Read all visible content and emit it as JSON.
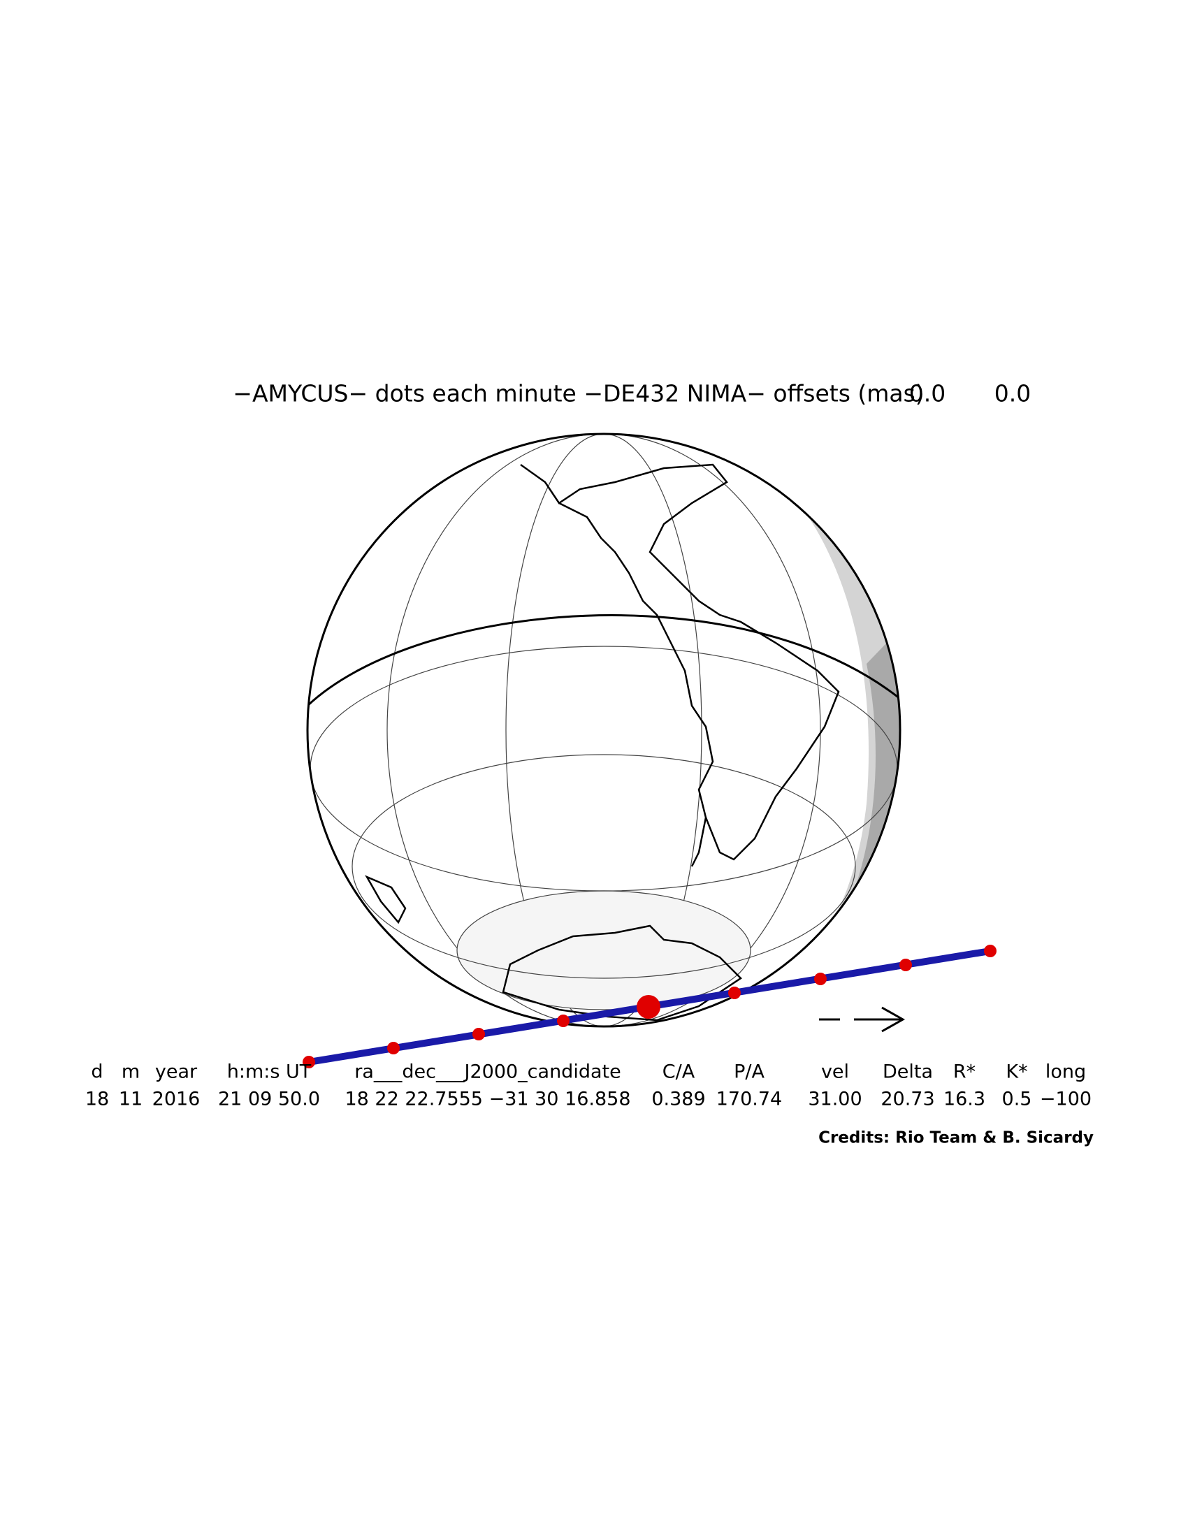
{
  "header": {
    "title": "−AMYCUS− dots each minute −DE432 NIMA− offsets (mas)",
    "offsets": [
      "0.0",
      "0.0"
    ]
  },
  "table": {
    "columns": [
      "d",
      "m",
      "year",
      "h:m:s UT",
      "ra___dec___J2000_candidate",
      "C/A",
      "P/A",
      "vel",
      "Delta",
      "R*",
      "K*",
      "long"
    ],
    "rows": [
      [
        "18",
        "11",
        "2016",
        "21 09 50.0",
        "18 22 22.7555 −31 30 16.858",
        "0.389",
        "170.74",
        "31.00",
        "20.73",
        "16.3",
        "0.5",
        "−100"
      ]
    ]
  },
  "footer": {
    "credits": "Credits: Rio Team & B. Sicardy"
  }
}
